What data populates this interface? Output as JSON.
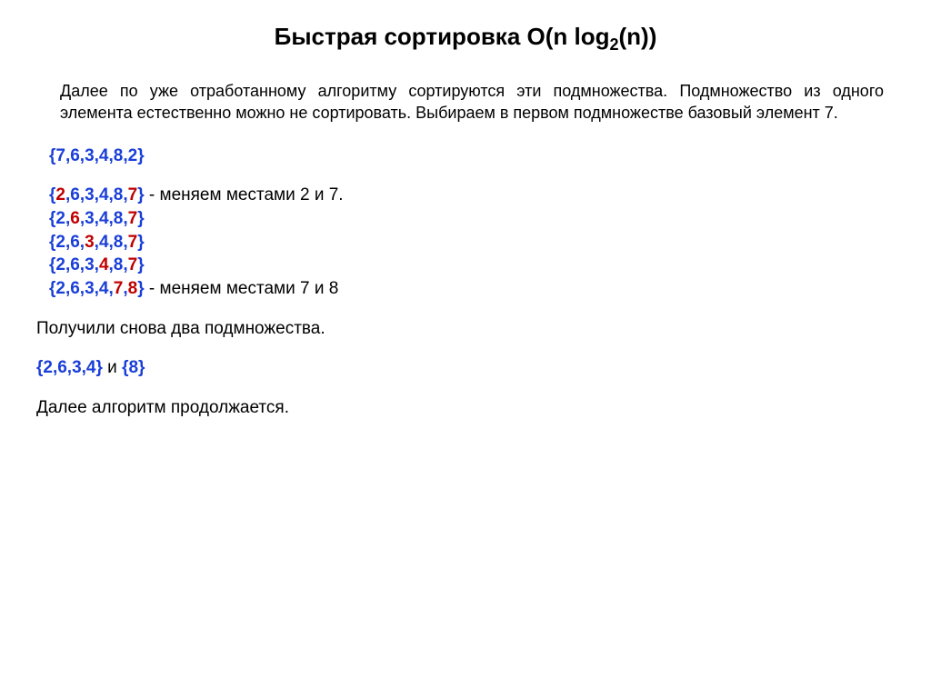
{
  "title_prefix": "Быстрая сортировка О(n log",
  "title_sub": "2",
  "title_suffix": "(n))",
  "intro": "Далее по уже отработанному алгоритму сортируются эти подмножества. Подмножество из одного элемента естественно можно не сортировать. Выбираем в первом подмножестве базовый элемент 7.",
  "lines": {
    "l1": "{7,6,3,4,8,2}",
    "l2_a": "{",
    "l2_b": "2",
    "l2_c": ",6,3,4,8,",
    "l2_d": "7",
    "l2_e": "}",
    "l2_note": " - меняем местами 2 и 7.",
    "l3_a": "{2,",
    "l3_b": "6",
    "l3_c": ",3,4,8,",
    "l3_d": "7",
    "l3_e": "}",
    "l4_a": "{2,6,",
    "l4_b": "3",
    "l4_c": ",4,8,",
    "l4_d": "7",
    "l4_e": "}",
    "l5_a": "{2,6,3,",
    "l5_b": "4",
    "l5_c": ",8,",
    "l5_d": "7",
    "l5_e": "}",
    "l6_a": "{2,6,3,4,",
    "l6_b": "7",
    "l6_c": ",",
    "l6_d": "8",
    "l6_e": "}",
    "l6_note": " - меняем местами 7 и 8"
  },
  "result_text": "Получили снова два подмножества.",
  "subsets_a": "{2,6,3,4}",
  "subsets_mid": " и ",
  "subsets_b": "{8}",
  "continue_text": "Далее алгоритм продолжается.",
  "colors": {
    "blue": "#1a3fd8",
    "red": "#c00000",
    "text": "#000000",
    "bg": "#ffffff"
  },
  "typography": {
    "title_fontsize": 26,
    "body_fontsize": 18,
    "line_fontsize": 19,
    "font_family": "Verdana"
  }
}
